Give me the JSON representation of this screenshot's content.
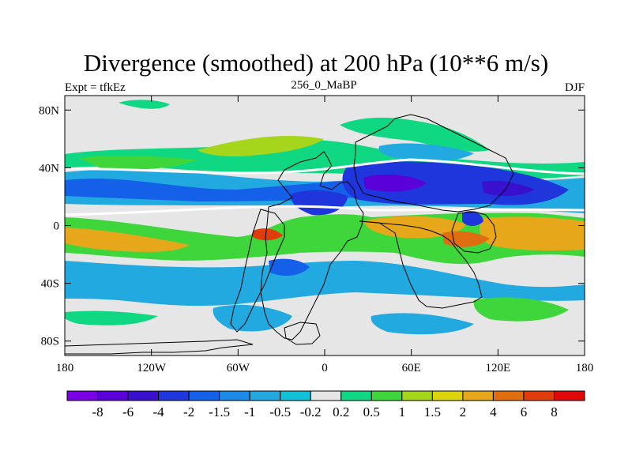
{
  "header": {
    "title": "Divergence (smoothed) at 200 hPa (10**6 m/s)",
    "left_label": "Expt = tfkEz",
    "center_label": "256_0_MaBP",
    "right_label": "DJF"
  },
  "map": {
    "lon_range": [
      -180,
      180
    ],
    "lat_range": [
      -90,
      90
    ],
    "background_color": "#e6e6e6",
    "x_ticks": [
      {
        "value": -180,
        "label": "180"
      },
      {
        "value": -120,
        "label": "120W"
      },
      {
        "value": -60,
        "label": "60W"
      },
      {
        "value": 0,
        "label": "0"
      },
      {
        "value": 60,
        "label": "60E"
      },
      {
        "value": 120,
        "label": "120E"
      },
      {
        "value": 180,
        "label": "180"
      }
    ],
    "y_ticks": [
      {
        "value": 80,
        "label": "80N"
      },
      {
        "value": 40,
        "label": "40N"
      },
      {
        "value": 0,
        "label": "0"
      },
      {
        "value": -40,
        "label": "40S"
      },
      {
        "value": -80,
        "label": "80S"
      }
    ]
  },
  "colorbar": {
    "colors": [
      "#7a00e6",
      "#5a00d8",
      "#3a10cf",
      "#1e36dc",
      "#1560e8",
      "#1d8ae6",
      "#21a9e0",
      "#12c0d8",
      "#e6e6e6",
      "#10d882",
      "#3ed63a",
      "#a6d61c",
      "#dcd40c",
      "#e6a81a",
      "#e06e10",
      "#e03c0c",
      "#e00808"
    ],
    "labels": [
      "-8",
      "-6",
      "-4",
      "-2",
      "-1.5",
      "-1",
      "-0.5",
      "-0.2",
      "0.2",
      "0.5",
      "1",
      "1.5",
      "2",
      "4",
      "6",
      "8"
    ]
  }
}
